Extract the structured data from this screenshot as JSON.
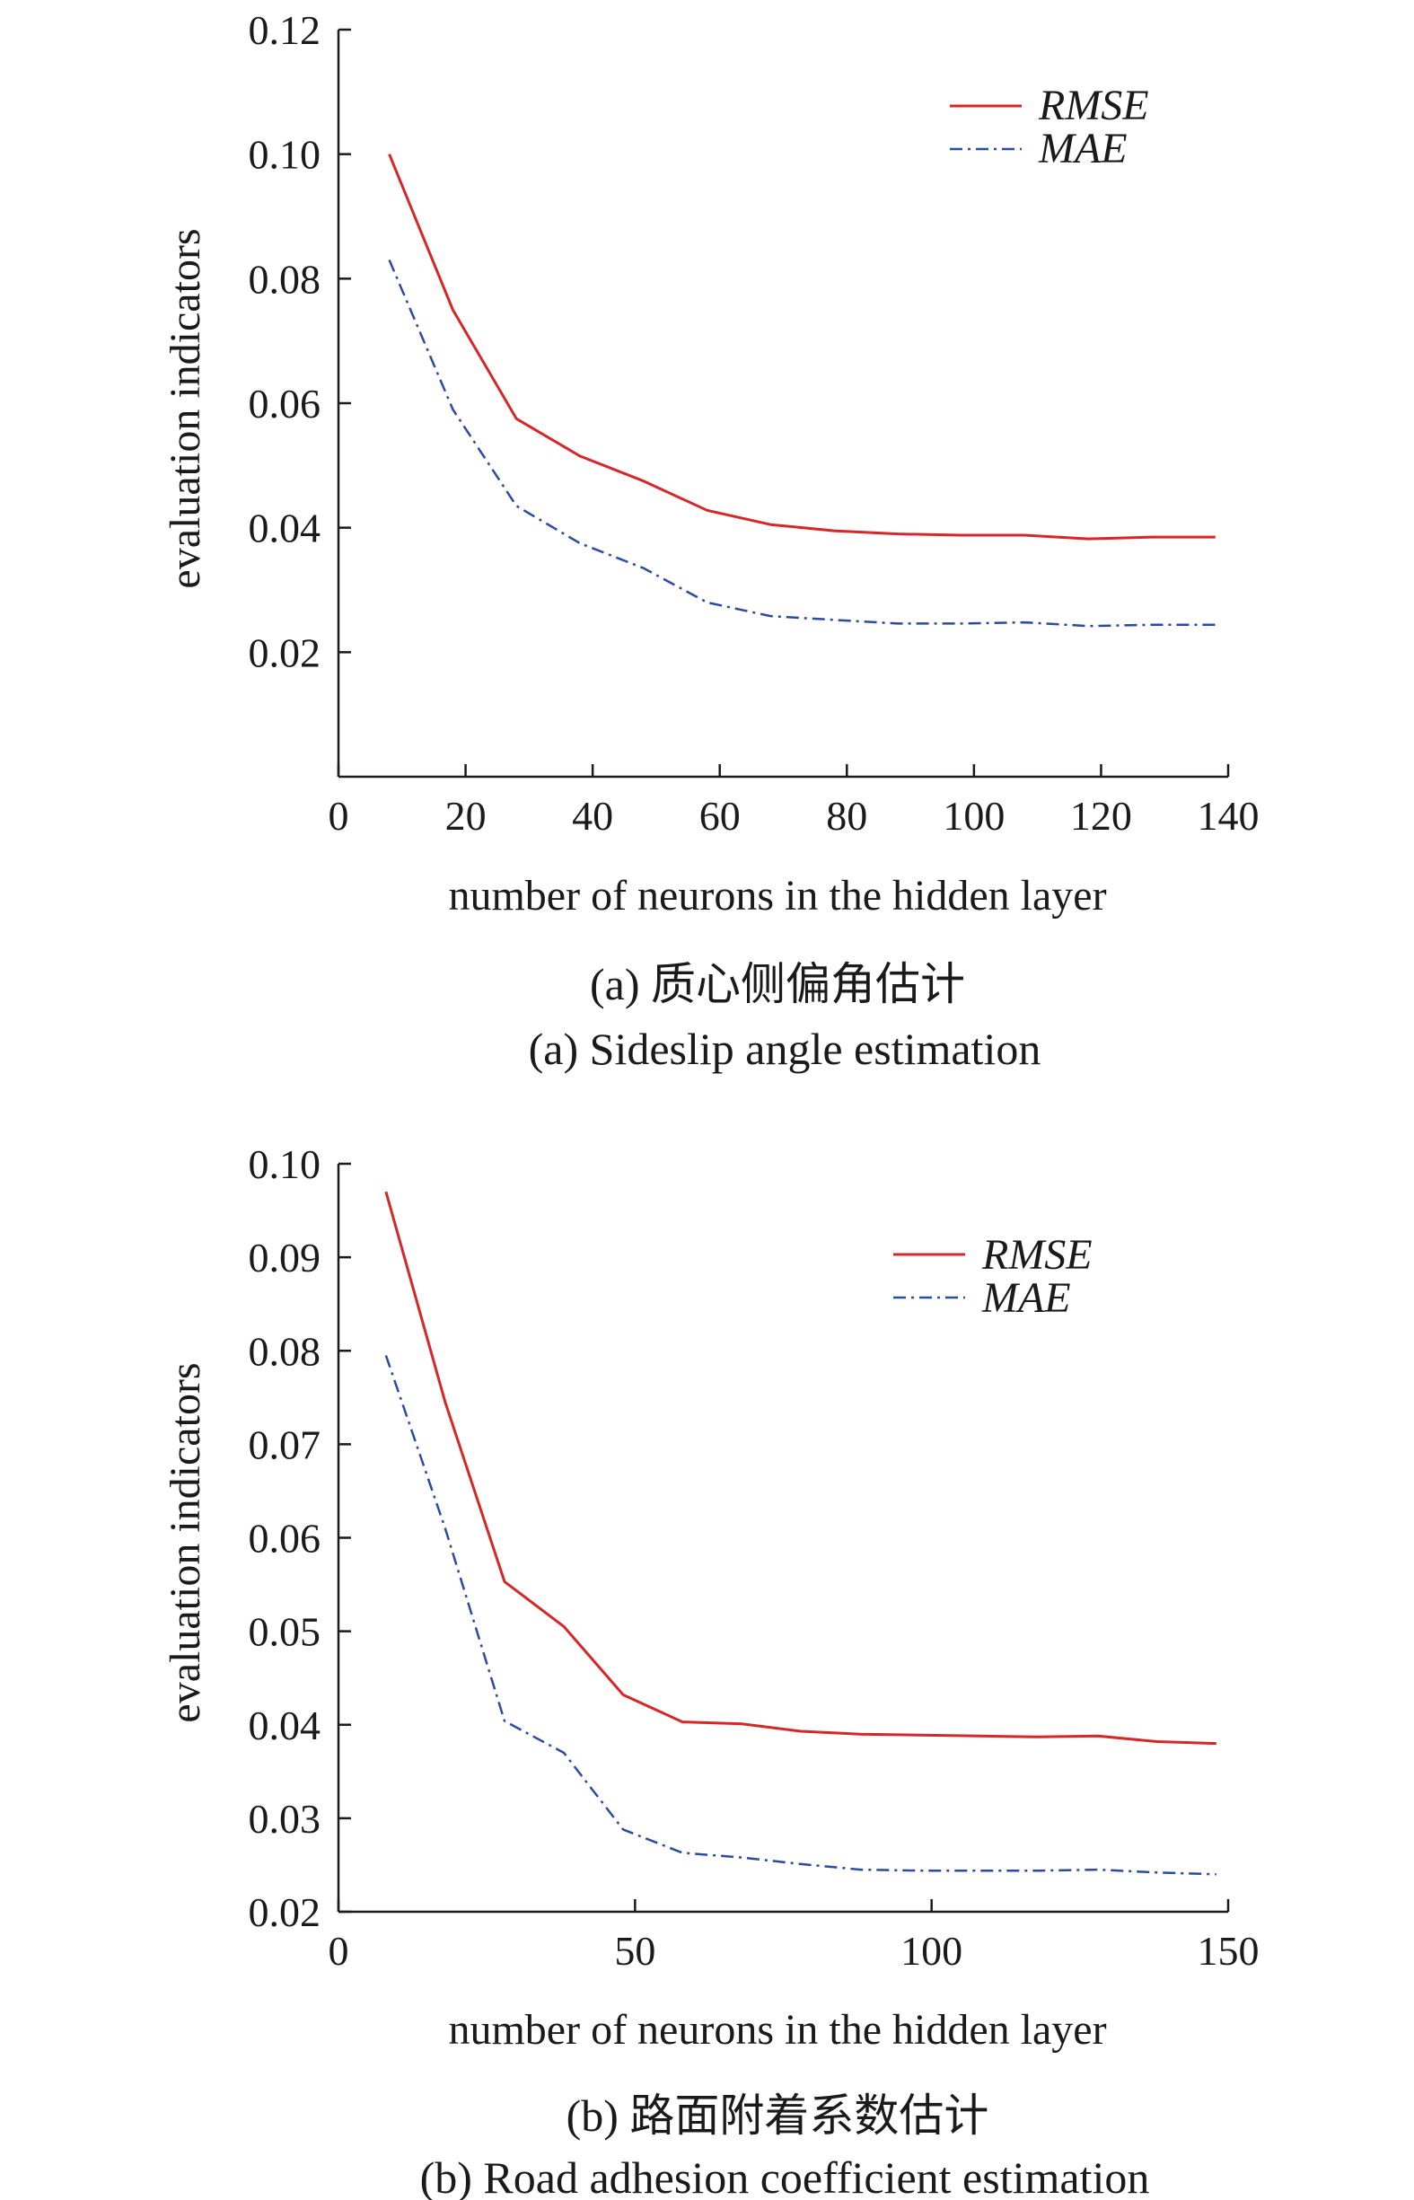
{
  "chart_data": [
    {
      "type": "line",
      "xlabel": "number of neurons in the hidden layer",
      "ylabel": "evaluation indicators",
      "xlim": [
        0,
        140
      ],
      "ylim": [
        0,
        0.12
      ],
      "xticks": [
        0,
        20,
        40,
        60,
        80,
        100,
        120,
        140
      ],
      "xtick_labels": [
        "0",
        "20",
        "40",
        "60",
        "80",
        "100",
        "120",
        "140"
      ],
      "yticks": [
        0.02,
        0.04,
        0.06,
        0.08,
        0.1,
        0.12
      ],
      "ytick_labels": [
        "0.02",
        "0.04",
        "0.06",
        "0.08",
        "0.10",
        "0.12"
      ],
      "grid": false,
      "legend_position": "top-right",
      "caption_cn": "(a) 质心侧偏角估计",
      "caption_en": "(a) Sideslip angle estimation",
      "series": [
        {
          "name": "RMSE",
          "color": "#d62728",
          "style": "solid",
          "points": [
            [
              8,
              0.1
            ],
            [
              18,
              0.075
            ],
            [
              28,
              0.0575
            ],
            [
              38,
              0.0515
            ],
            [
              48,
              0.0475
            ],
            [
              58,
              0.0428
            ],
            [
              68,
              0.0405
            ],
            [
              78,
              0.0395
            ],
            [
              88,
              0.039
            ],
            [
              98,
              0.0388
            ],
            [
              108,
              0.0388
            ],
            [
              118,
              0.0382
            ],
            [
              128,
              0.0385
            ],
            [
              138,
              0.0385
            ]
          ]
        },
        {
          "name": "MAE",
          "color": "#2c4aa0",
          "style": "dashdot",
          "points": [
            [
              8,
              0.083
            ],
            [
              18,
              0.059
            ],
            [
              28,
              0.0435
            ],
            [
              38,
              0.0375
            ],
            [
              48,
              0.0335
            ],
            [
              58,
              0.028
            ],
            [
              68,
              0.0258
            ],
            [
              78,
              0.0252
            ],
            [
              88,
              0.0246
            ],
            [
              98,
              0.0246
            ],
            [
              108,
              0.0248
            ],
            [
              118,
              0.0242
            ],
            [
              128,
              0.0244
            ],
            [
              138,
              0.0244
            ]
          ]
        }
      ]
    },
    {
      "type": "line",
      "xlabel": "number of neurons in the hidden layer",
      "ylabel": "evaluation indicators",
      "xlim": [
        0,
        150
      ],
      "ylim": [
        0.02,
        0.1
      ],
      "xticks": [
        0,
        50,
        100,
        150
      ],
      "xtick_labels": [
        "0",
        "50",
        "100",
        "150"
      ],
      "yticks": [
        0.02,
        0.03,
        0.04,
        0.05,
        0.06,
        0.07,
        0.08,
        0.09,
        0.1
      ],
      "ytick_labels": [
        "0.02",
        "0.03",
        "0.04",
        "0.05",
        "0.06",
        "0.07",
        "0.08",
        "0.09",
        "0.10"
      ],
      "grid": false,
      "legend_position": "top-right",
      "caption_cn": "(b) 路面附着系数估计",
      "caption_en": "(b) Road adhesion coefficient estimation",
      "series": [
        {
          "name": "RMSE",
          "color": "#d62728",
          "style": "solid",
          "points": [
            [
              8,
              0.097
            ],
            [
              18,
              0.0745
            ],
            [
              28,
              0.0553
            ],
            [
              38,
              0.0505
            ],
            [
              48,
              0.0432
            ],
            [
              58,
              0.0403
            ],
            [
              68,
              0.0401
            ],
            [
              78,
              0.0393
            ],
            [
              88,
              0.039
            ],
            [
              98,
              0.0389
            ],
            [
              108,
              0.0388
            ],
            [
              118,
              0.0387
            ],
            [
              128,
              0.0388
            ],
            [
              138,
              0.0382
            ],
            [
              148,
              0.038
            ]
          ]
        },
        {
          "name": "MAE",
          "color": "#2c4aa0",
          "style": "dashdot",
          "points": [
            [
              8,
              0.0795
            ],
            [
              18,
              0.061
            ],
            [
              28,
              0.0404
            ],
            [
              38,
              0.037
            ],
            [
              48,
              0.0288
            ],
            [
              58,
              0.0263
            ],
            [
              68,
              0.0258
            ],
            [
              78,
              0.0251
            ],
            [
              88,
              0.0245
            ],
            [
              98,
              0.0244
            ],
            [
              108,
              0.0244
            ],
            [
              118,
              0.0244
            ],
            [
              128,
              0.0245
            ],
            [
              138,
              0.0242
            ],
            [
              148,
              0.024
            ]
          ]
        }
      ]
    }
  ]
}
